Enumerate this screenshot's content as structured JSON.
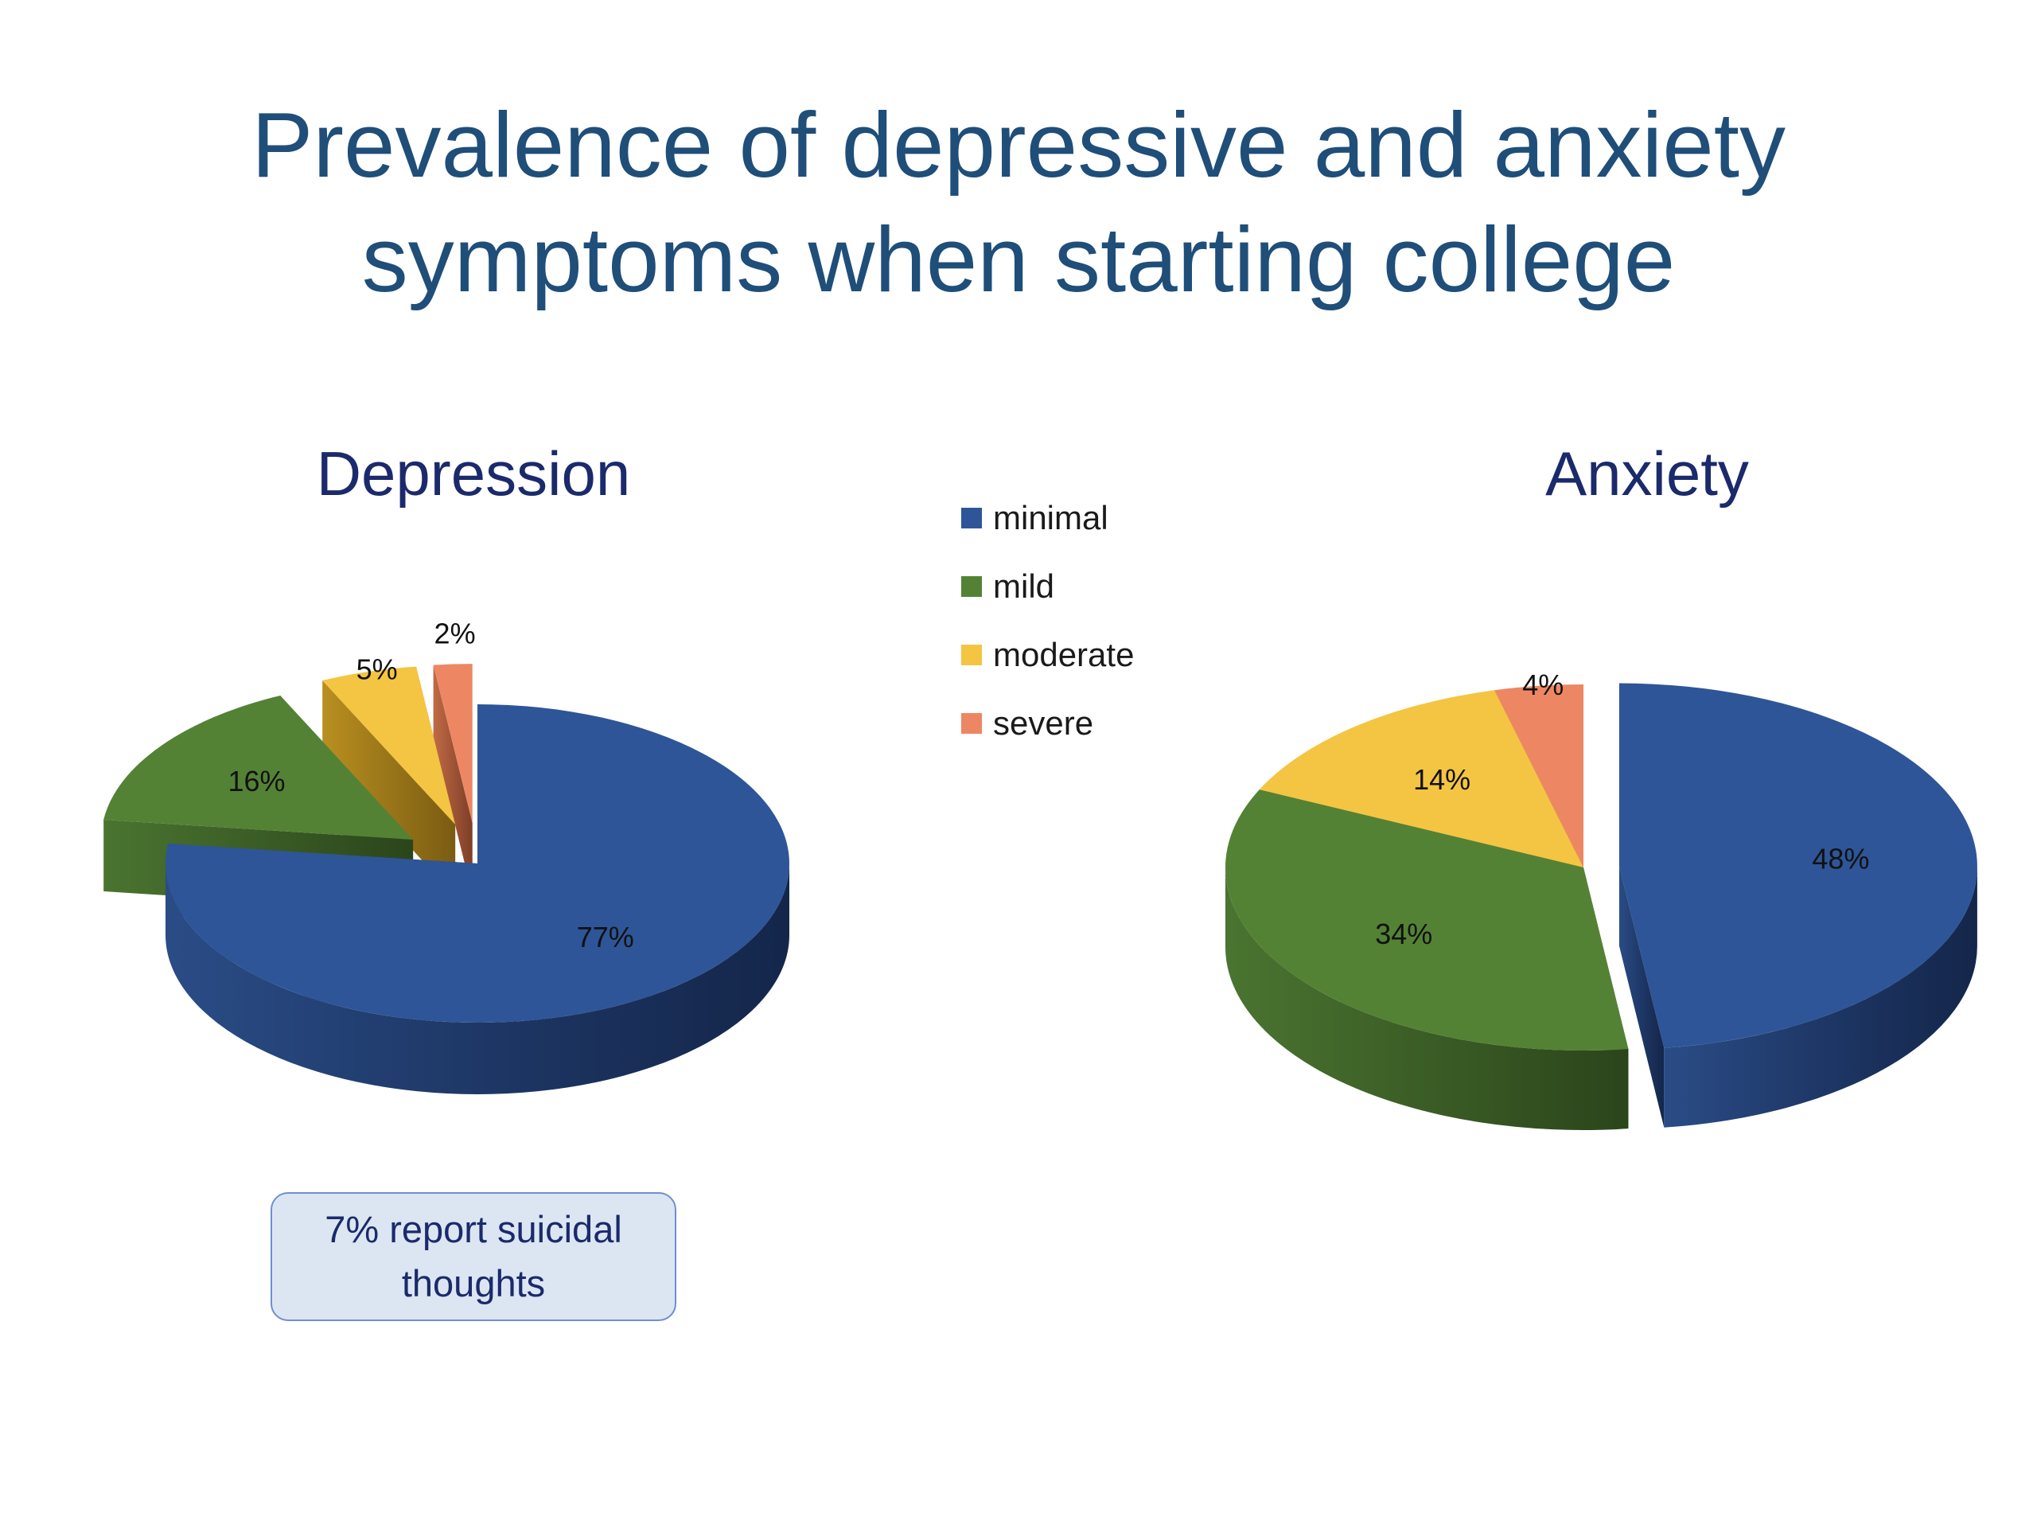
{
  "title_line1": "Prevalence of depressive and anxiety",
  "title_line2": "symptoms when starting college",
  "legend": [
    {
      "label": "minimal",
      "color": "#2e5597"
    },
    {
      "label": "mild",
      "color": "#548235"
    },
    {
      "label": "moderate",
      "color": "#f4c542"
    },
    {
      "label": "severe",
      "color": "#ed8763"
    }
  ],
  "callout": "7% report suicidal thoughts",
  "chart_data": [
    {
      "type": "pie",
      "title": "Depression",
      "categories": [
        "minimal",
        "mild",
        "moderate",
        "severe"
      ],
      "values": [
        77,
        16,
        5,
        2
      ],
      "data_labels": [
        "77%",
        "16%",
        "5%",
        "2%"
      ],
      "exploded": [
        "mild",
        "moderate",
        "severe"
      ],
      "style": "3d"
    },
    {
      "type": "pie",
      "title": "Anxiety",
      "categories": [
        "minimal",
        "mild",
        "moderate",
        "severe"
      ],
      "values": [
        48,
        34,
        14,
        4
      ],
      "data_labels": [
        "48%",
        "34%",
        "14%",
        "4%"
      ],
      "exploded": [
        "minimal"
      ],
      "style": "3d"
    }
  ]
}
